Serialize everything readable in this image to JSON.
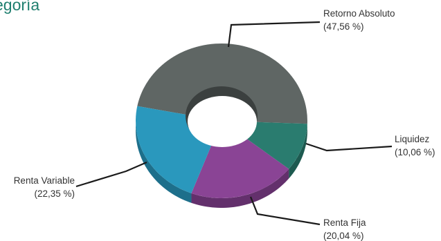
{
  "page": {
    "title": "egoría"
  },
  "chart_data": {
    "type": "pie",
    "style": "3d-donut",
    "title": "egoría",
    "series": [
      {
        "name": "Retorno Absoluto",
        "value": 47.56,
        "value_label": "(47,56 %)",
        "color": "#5f6664",
        "side_color": "#4a504e"
      },
      {
        "name": "Liquidez",
        "value": 10.06,
        "value_label": "(10,06 %)",
        "color": "#2a7c6f",
        "side_color": "#1d5a50"
      },
      {
        "name": "Renta Fija",
        "value": 20.04,
        "value_label": "(20,04 %)",
        "color": "#8a4495",
        "side_color": "#63306c"
      },
      {
        "name": "Renta Variable",
        "value": 22.35,
        "value_label": "(22,35 %)",
        "color": "#2a98bd",
        "side_color": "#1d6f8b"
      }
    ]
  }
}
